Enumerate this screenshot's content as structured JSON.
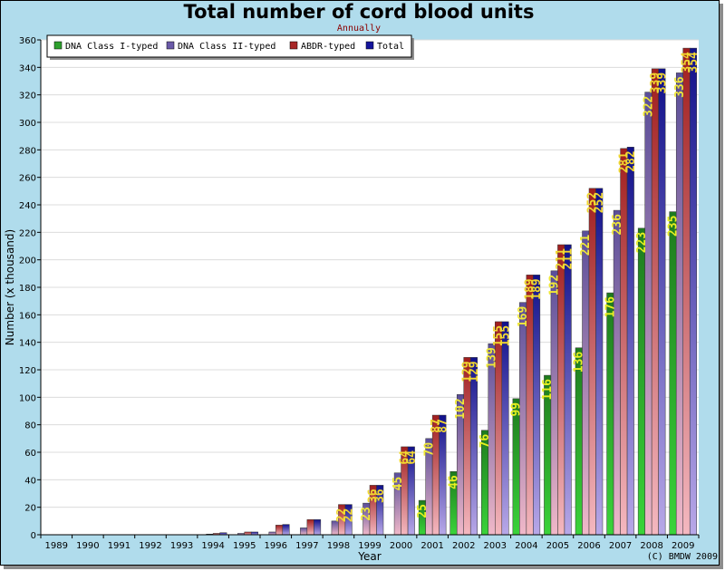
{
  "chart_data": {
    "type": "bar",
    "title": "Total number of cord blood units",
    "subtitle": "Annually",
    "xlabel": "Year",
    "ylabel": "Number (x thousand)",
    "ylim": [
      0,
      360
    ],
    "yticks": [
      0,
      20,
      40,
      60,
      80,
      100,
      120,
      140,
      160,
      180,
      200,
      220,
      240,
      260,
      280,
      300,
      320,
      340,
      360
    ],
    "grid": true,
    "legend_position": "top-left",
    "categories": [
      "1989",
      "1990",
      "1991",
      "1992",
      "1993",
      "1994",
      "1995",
      "1996",
      "1997",
      "1998",
      "1999",
      "2000",
      "2001",
      "2002",
      "2003",
      "2004",
      "2005",
      "2006",
      "2007",
      "2008",
      "2009"
    ],
    "series": [
      {
        "name": "DNA Class I-typed",
        "color": "#2ea02e",
        "values": [
          0,
          0,
          0,
          0,
          0,
          0,
          0,
          0,
          0,
          0,
          0,
          0,
          25,
          46,
          76,
          99,
          116,
          136,
          176,
          223,
          235
        ],
        "labels": [
          "",
          "",
          "",
          "",
          "",
          "",
          "",
          "",
          "",
          "",
          "",
          "",
          "25",
          "46",
          "76",
          "99",
          "116",
          "136",
          "176",
          "223",
          "235"
        ]
      },
      {
        "name": "DNA Class II-typed",
        "color": "#6a5aa8",
        "values": [
          0,
          0,
          0,
          0,
          0,
          0.5,
          1,
          2,
          5,
          10,
          23,
          45,
          70,
          102,
          139,
          169,
          192,
          221,
          236,
          322,
          336
        ],
        "labels": [
          "",
          "",
          "",
          "",
          "",
          "",
          "",
          "",
          "",
          "",
          "23",
          "45",
          "70",
          "102",
          "139",
          "169",
          "192",
          "221",
          "236",
          "322",
          "336"
        ]
      },
      {
        "name": "ABDR-typed",
        "color": "#a82828",
        "values": [
          0,
          0,
          0,
          0,
          0,
          1,
          2,
          7,
          11,
          22,
          36,
          64,
          87,
          129,
          155,
          189,
          211,
          252,
          281,
          339,
          354
        ],
        "labels": [
          "",
          "",
          "",
          "",
          "",
          "",
          "",
          "",
          "",
          "22",
          "36",
          "64",
          "87",
          "129",
          "155",
          "189",
          "211",
          "252",
          "281",
          "339",
          "354"
        ]
      },
      {
        "name": "Total",
        "color": "#14149c",
        "values": [
          0,
          0,
          0,
          0,
          0,
          1.5,
          2,
          7.5,
          11,
          22,
          36,
          64,
          87,
          129,
          155,
          189,
          211,
          252,
          282,
          339,
          354
        ],
        "labels": [
          "",
          "",
          "",
          "",
          "",
          "",
          "",
          "",
          "",
          "22",
          "36",
          "64",
          "87",
          "129",
          "155",
          "189",
          "211",
          "252",
          "282",
          "339",
          "354"
        ]
      }
    ]
  },
  "credit": "(C) BMDW 2009"
}
